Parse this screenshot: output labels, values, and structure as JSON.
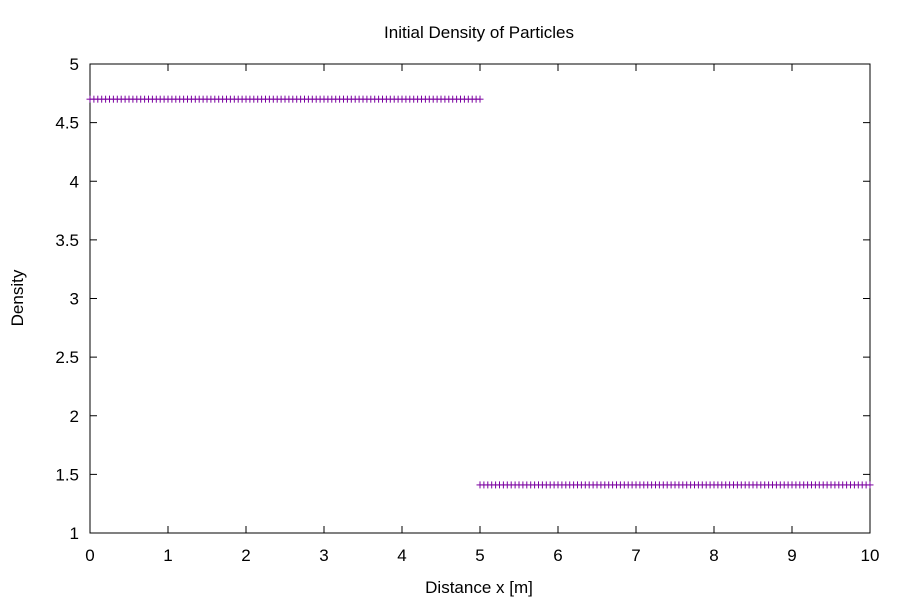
{
  "chart_data": {
    "type": "scatter",
    "title": "Initial Density of Particles",
    "xlabel": "Distance x [m]",
    "ylabel": "Density",
    "xlim": [
      0,
      10
    ],
    "ylim": [
      1,
      5
    ],
    "grid": false,
    "legend": "none",
    "marker": "plus",
    "x_ticks": [
      "0",
      "1",
      "2",
      "3",
      "4",
      "5",
      "6",
      "7",
      "8",
      "9",
      "10"
    ],
    "y_ticks": [
      "1",
      "1.5",
      "2",
      "2.5",
      "3",
      "3.5",
      "4",
      "4.5",
      "5"
    ],
    "series": [
      {
        "color": "#7b00a0",
        "segments": [
          {
            "x_start": 0,
            "x_end": 5,
            "step": 0.05,
            "y": 4.7
          },
          {
            "x_start": 5,
            "x_end": 10,
            "step": 0.05,
            "y": 1.41
          }
        ]
      }
    ]
  }
}
